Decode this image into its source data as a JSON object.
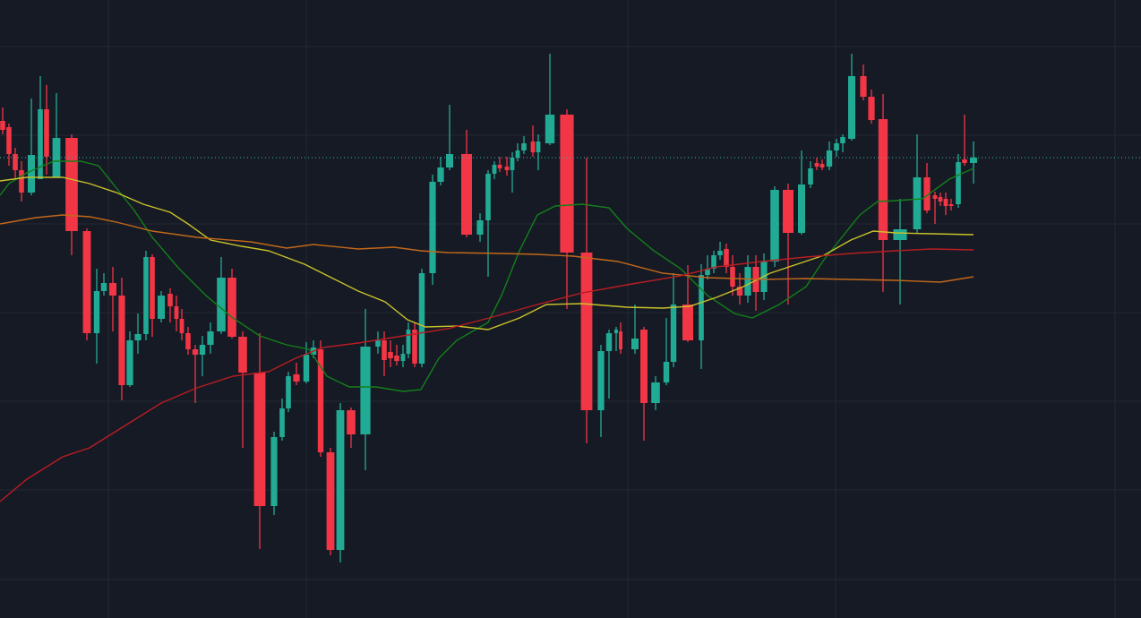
{
  "chart_data": {
    "type": "candlestick",
    "background": "#161a25",
    "grid_color": "#242834",
    "up_color": "#22ab94",
    "down_color": "#f23645",
    "grid": true,
    "xlim": [
      0,
      1274
    ],
    "ylim": [
      0,
      690
    ],
    "xticks": [
      121,
      342,
      701,
      933,
      1245
    ],
    "yticks": [
      43,
      143,
      242,
      341,
      440,
      539,
      638
    ],
    "x": [
      3,
      10,
      17,
      24,
      35,
      45,
      52,
      63,
      80,
      97,
      108,
      116,
      126,
      136,
      145,
      154,
      163,
      170,
      180,
      190,
      197,
      203,
      210,
      218,
      226,
      235,
      247,
      259,
      271,
      290,
      306,
      315,
      322,
      331,
      342,
      350,
      358,
      369,
      380,
      392,
      408,
      422,
      429,
      436,
      443,
      450,
      456,
      463,
      471,
      483,
      492,
      502,
      521,
      536,
      545,
      552,
      558,
      566,
      572,
      578,
      585,
      595,
      601,
      614,
      633,
      655,
      671,
      680,
      688,
      693,
      709,
      719,
      732,
      744,
      752,
      768,
      783,
      790,
      797,
      804,
      811,
      818,
      826,
      835,
      844,
      853,
      865,
      880,
      895,
      905,
      912,
      918,
      926,
      934,
      941,
      951,
      964,
      973,
      986,
      1005,
      1024,
      1035,
      1044,
      1050,
      1056,
      1062,
      1070,
      1077,
      1087
    ],
    "open": [
      555,
      548,
      518,
      500,
      475,
      490,
      568,
      492,
      536,
      432,
      318,
      365,
      374,
      360,
      260,
      310,
      317,
      403,
      334,
      362,
      348,
      334,
      318,
      300,
      294,
      305,
      320,
      380,
      314,
      274,
      125,
      202,
      234,
      272,
      264,
      294,
      300,
      185,
      76,
      232,
      205,
      303,
      310,
      297,
      293,
      287,
      295,
      322,
      284,
      385,
      487,
      503,
      518,
      428,
      444,
      496,
      506,
      504,
      500,
      514,
      522,
      532,
      520,
      530,
      562,
      408,
      232,
      298,
      318,
      320,
      300,
      322,
      240,
      263,
      286,
      350,
      310,
      383,
      390,
      405,
      412,
      392,
      370,
      360,
      392,
      364,
      398,
      478,
      430,
      484,
      508,
      507,
      504,
      522,
      530,
      535,
      605,
      582,
      557,
      422,
      434,
      492,
      472,
      470,
      468,
      462,
      462,
      512,
      508
    ],
    "high": [
      570,
      552,
      525,
      510,
      580,
      605,
      595,
      586,
      540,
      435,
      390,
      385,
      392,
      380,
      320,
      340,
      410,
      406,
      365,
      368,
      360,
      345,
      325,
      305,
      315,
      330,
      403,
      390,
      320,
      318,
      208,
      245,
      275,
      285,
      308,
      310,
      310,
      190,
      240,
      235,
      345,
      320,
      320,
      310,
      305,
      305,
      330,
      330,
      390,
      495,
      515,
      573,
      545,
      452,
      500,
      510,
      515,
      515,
      520,
      530,
      538,
      550,
      540,
      630,
      568,
      514,
      305,
      322,
      325,
      330,
      350,
      325,
      270,
      335,
      385,
      394,
      395,
      405,
      410,
      420,
      418,
      405,
      385,
      405,
      405,
      407,
      482,
      485,
      522,
      510,
      514,
      512,
      532,
      535,
      540,
      630,
      618,
      590,
      585,
      468,
      540,
      508,
      476,
      475,
      475,
      468,
      518,
      562,
      532
    ],
    "low": [
      540,
      505,
      490,
      465,
      472,
      490,
      495,
      492,
      405,
      310,
      284,
      360,
      320,
      243,
      258,
      295,
      310,
      314,
      330,
      330,
      320,
      310,
      294,
      240,
      270,
      295,
      317,
      312,
      190,
      77,
      115,
      198,
      230,
      260,
      262,
      290,
      180,
      70,
      62,
      190,
      165,
      295,
      270,
      280,
      282,
      280,
      290,
      280,
      280,
      372,
      483,
      500,
      425,
      420,
      381,
      490,
      498,
      494,
      475,
      510,
      518,
      515,
      500,
      528,
      345,
      195,
      202,
      245,
      298,
      295,
      295,
      198,
      232,
      260,
      280,
      308,
      278,
      378,
      385,
      400,
      385,
      360,
      350,
      352,
      343,
      355,
      392,
      350,
      428,
      480,
      500,
      500,
      500,
      515,
      520,
      533,
      578,
      552,
      364,
      350,
      430,
      452,
      440,
      460,
      450,
      455,
      458,
      505,
      485
    ],
    "close": [
      545,
      518,
      500,
      475,
      517,
      568,
      515,
      536,
      432,
      318,
      365,
      374,
      360,
      260,
      310,
      317,
      403,
      334,
      360,
      348,
      334,
      318,
      300,
      294,
      305,
      320,
      380,
      314,
      274,
      125,
      202,
      234,
      270,
      264,
      294,
      302,
      185,
      76,
      232,
      205,
      303,
      310,
      288,
      290,
      287,
      295,
      322,
      284,
      385,
      487,
      503,
      518,
      428,
      444,
      496,
      506,
      502,
      500,
      514,
      522,
      530,
      520,
      532,
      562,
      408,
      232,
      298,
      318,
      322,
      300,
      312,
      240,
      263,
      286,
      350,
      310,
      383,
      390,
      405,
      410,
      392,
      370,
      360,
      392,
      364,
      398,
      478,
      430,
      484,
      502,
      504,
      503,
      522,
      530,
      537,
      605,
      582,
      556,
      422,
      434,
      492,
      455,
      468,
      465,
      460,
      460,
      509,
      508,
      514
    ],
    "last_price": 514,
    "last_price_color": "#3fb8ad",
    "lines": [
      {
        "color": "#13801a",
        "x": [
          0,
          10,
          30,
          60,
          90,
          110,
          130,
          150,
          170,
          200,
          230,
          260,
          290,
          320,
          345,
          365,
          390,
          420,
          450,
          470,
          490,
          510,
          545,
          560,
          580,
          600,
          620,
          650,
          680,
          700,
          730,
          760,
          790,
          820,
          840,
          870,
          900,
          920,
          940,
          960,
          980,
          1000,
          1030,
          1060,
          1087
        ],
        "values": [
          472,
          485,
          497,
          510,
          510,
          505,
          480,
          455,
          425,
          390,
          360,
          335,
          315,
          305,
          300,
          270,
          258,
          258,
          253,
          255,
          290,
          310,
          330,
          360,
          410,
          450,
          460,
          462,
          458,
          435,
          410,
          390,
          360,
          340,
          335,
          350,
          370,
          400,
          425,
          450,
          465,
          466,
          468,
          490,
          502
        ]
      },
      {
        "color": "#c9c22a",
        "x": [
          0,
          30,
          70,
          100,
          130,
          160,
          190,
          210,
          235,
          270,
          300,
          340,
          370,
          400,
          430,
          455,
          475,
          510,
          545,
          580,
          610,
          650,
          700,
          740,
          770,
          800,
          830,
          860,
          890,
          920,
          950,
          975,
          1000,
          1040,
          1087
        ],
        "values": [
          488,
          492,
          492,
          485,
          475,
          462,
          453,
          440,
          422,
          415,
          410,
          395,
          380,
          365,
          353,
          333,
          325,
          326,
          322,
          335,
          350,
          351,
          347,
          346,
          348,
          358,
          370,
          385,
          395,
          405,
          422,
          432,
          430,
          429,
          428
        ]
      },
      {
        "color": "#c2681a",
        "x": [
          0,
          40,
          70,
          100,
          130,
          170,
          220,
          280,
          320,
          350,
          400,
          440,
          470,
          500,
          560,
          600,
          640,
          690,
          740,
          790,
          850,
          900,
          950,
          1000,
          1050,
          1087
        ],
        "values": [
          440,
          447,
          450,
          448,
          442,
          432,
          425,
          420,
          413,
          417,
          412,
          414,
          410,
          408,
          407,
          406,
          404,
          398,
          385,
          380,
          378,
          379,
          378,
          377,
          375,
          381
        ]
      },
      {
        "color": "#b81d22",
        "x": [
          0,
          30,
          70,
          100,
          140,
          180,
          220,
          260,
          300,
          330,
          360,
          400,
          450,
          500,
          550,
          600,
          650,
          700,
          760,
          800,
          850,
          900,
          950,
          1000,
          1040,
          1087
        ],
        "values": [
          130,
          155,
          180,
          190,
          215,
          240,
          257,
          270,
          275,
          290,
          302,
          307,
          315,
          323,
          336,
          350,
          363,
          372,
          382,
          392,
          398,
          403,
          407,
          410,
          412,
          411
        ]
      }
    ]
  }
}
